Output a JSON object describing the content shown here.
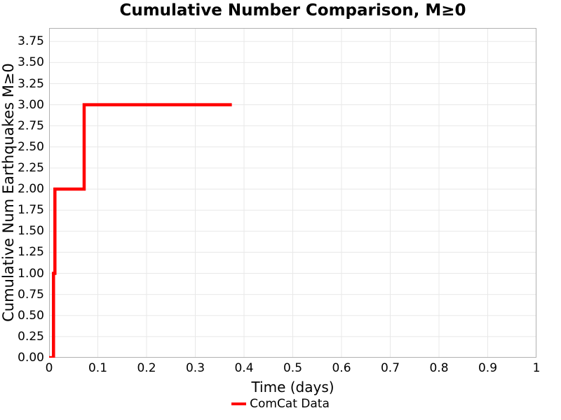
{
  "chart_data": {
    "type": "line",
    "title": "Cumulative Number Comparison, M≥0",
    "xlabel": "Time (days)",
    "ylabel": "Cumulative Num Earthquakes M≥0",
    "xlim": [
      0,
      1
    ],
    "ylim": [
      0,
      3.91
    ],
    "grid": true,
    "legend_position": "bottom-center",
    "xticks": {
      "values": [
        0,
        0.1,
        0.2,
        0.3,
        0.4,
        0.5,
        0.6,
        0.7,
        0.8,
        0.9,
        1
      ],
      "labels": [
        "0",
        "0.1",
        "0.2",
        "0.3",
        "0.4",
        "0.5",
        "0.6",
        "0.7",
        "0.8",
        "0.9",
        "1"
      ]
    },
    "yticks": {
      "values": [
        0,
        0.25,
        0.5,
        0.75,
        1,
        1.25,
        1.5,
        1.75,
        2,
        2.25,
        2.5,
        2.75,
        3,
        3.25,
        3.5,
        3.75
      ],
      "labels": [
        "0.00",
        "0.25",
        "0.50",
        "0.75",
        "1.00",
        "1.25",
        "1.50",
        "1.75",
        "2.00",
        "2.25",
        "2.50",
        "2.75",
        "3.00",
        "3.25",
        "3.50",
        "3.75"
      ]
    },
    "series": [
      {
        "name": "ComCat Data",
        "color": "#ff0000",
        "style": "step",
        "line_width": 4.5,
        "event_times": [
          0.009,
          0.012,
          0.072
        ],
        "end_time": 0.375,
        "points": [
          [
            0,
            0
          ],
          [
            0.009,
            0
          ],
          [
            0.009,
            1
          ],
          [
            0.012,
            1
          ],
          [
            0.012,
            2
          ],
          [
            0.072,
            2
          ],
          [
            0.072,
            3
          ],
          [
            0.375,
            3
          ]
        ]
      }
    ],
    "colors": {
      "background": "#ffffff",
      "grid": "#e8e8e8",
      "spine": "#b0b0b0",
      "text": "#000000"
    }
  }
}
